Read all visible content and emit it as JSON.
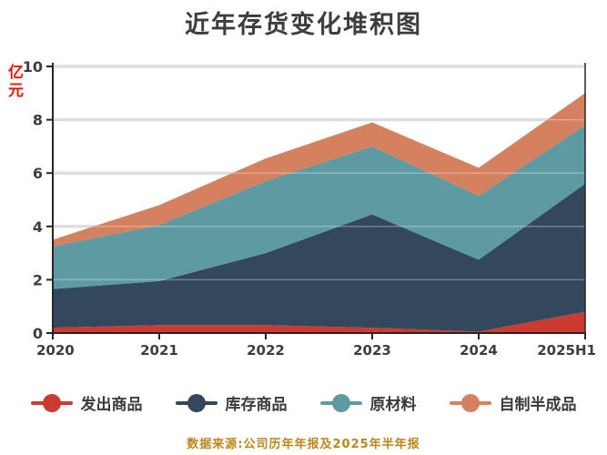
{
  "page": {
    "title": "近年存货变化堆积图"
  },
  "footer": {
    "note": "数据来源:公司历年年报及2025年半年报"
  },
  "chart_data": {
    "type": "area",
    "stacked": true,
    "title": "近年存货变化堆积图",
    "y_unit": "亿元",
    "xlabel": "",
    "ylabel": "亿元",
    "x_categories": [
      "2020",
      "2021",
      "2022",
      "2023",
      "2024",
      "2025H1"
    ],
    "series": [
      {
        "name": "发出商品",
        "color": "#cc3b32",
        "values": [
          0.2,
          0.3,
          0.3,
          0.2,
          0.05,
          0.8
        ]
      },
      {
        "name": "库存商品",
        "color": "#33485d",
        "values": [
          1.45,
          1.65,
          2.7,
          4.25,
          2.7,
          4.8
        ]
      },
      {
        "name": "原材料",
        "color": "#5d9aa2",
        "values": [
          1.6,
          2.1,
          2.7,
          2.55,
          2.4,
          2.2
        ]
      },
      {
        "name": "自制半成品",
        "color": "#d5815f",
        "values": [
          0.25,
          0.75,
          0.85,
          0.9,
          1.05,
          1.2
        ]
      }
    ],
    "stacked_totals": [
      3.5,
      4.8,
      6.55,
      7.9,
      6.2,
      9.0
    ],
    "ylim": [
      0,
      10
    ],
    "y_ticks": [
      0,
      2,
      4,
      6,
      8,
      10
    ],
    "grid": true,
    "legend_position": "bottom"
  },
  "style": {
    "grid_color": "#d3d3d3",
    "grid_overlay_color": "rgba(255,255,255,0.3)",
    "axis_color": "#262626",
    "tick_label_color": "#3d3d3d",
    "title_color": "#3d3d3d",
    "unit_color": "#ee1609",
    "footer_color": "#bd861b"
  }
}
